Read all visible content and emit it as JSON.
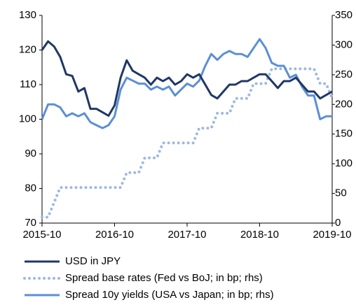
{
  "chart_data": {
    "type": "line",
    "x": [
      "2015-10",
      "2015-11",
      "2015-12",
      "2016-01",
      "2016-02",
      "2016-03",
      "2016-04",
      "2016-05",
      "2016-06",
      "2016-07",
      "2016-08",
      "2016-09",
      "2016-10",
      "2016-11",
      "2016-12",
      "2017-01",
      "2017-02",
      "2017-03",
      "2017-04",
      "2017-05",
      "2017-06",
      "2017-07",
      "2017-08",
      "2017-09",
      "2017-10",
      "2017-11",
      "2017-12",
      "2018-01",
      "2018-02",
      "2018-03",
      "2018-04",
      "2018-05",
      "2018-06",
      "2018-07",
      "2018-08",
      "2018-09",
      "2018-10",
      "2018-11",
      "2018-12",
      "2019-01",
      "2019-02",
      "2019-03",
      "2019-04",
      "2019-05",
      "2019-06",
      "2019-07",
      "2019-08",
      "2019-09",
      "2019-10"
    ],
    "series": [
      {
        "name": "USD in JPY",
        "color": "#1f3864",
        "style": "solid",
        "axis": "y",
        "values": [
          120,
          122.5,
          121,
          118,
          113,
          112.5,
          108,
          109,
          103,
          103,
          102,
          101,
          104,
          112,
          117,
          114,
          113,
          112,
          110,
          112,
          111,
          112,
          110,
          111,
          113,
          112,
          113,
          110,
          107,
          106,
          108,
          110,
          110,
          111,
          111,
          112,
          113,
          113,
          111,
          109,
          111,
          111,
          112,
          110,
          108,
          108,
          106,
          107,
          108
        ]
      },
      {
        "name": "Spread base rates (Fed vs BoJ; in bp; rhs)",
        "color": "#9db8e3",
        "style": "dotted",
        "axis": "y2",
        "values": [
          10,
          10,
          35,
          60,
          60,
          60,
          60,
          60,
          60,
          60,
          60,
          60,
          60,
          60,
          85,
          85,
          85,
          110,
          110,
          110,
          135,
          135,
          135,
          135,
          135,
          135,
          160,
          160,
          160,
          185,
          185,
          185,
          210,
          210,
          210,
          235,
          235,
          235,
          260,
          260,
          260,
          260,
          260,
          260,
          260,
          260,
          235,
          235,
          210
        ]
      },
      {
        "name": "Spread 10y yields (USA vs Japan; in bp; rhs)",
        "color": "#5b8fd6",
        "style": "solid",
        "axis": "y2",
        "values": [
          175,
          200,
          200,
          195,
          180,
          185,
          180,
          185,
          170,
          165,
          160,
          165,
          180,
          225,
          245,
          240,
          235,
          235,
          225,
          230,
          225,
          230,
          215,
          225,
          235,
          230,
          240,
          265,
          285,
          275,
          285,
          290,
          285,
          285,
          280,
          295,
          310,
          295,
          270,
          265,
          265,
          245,
          250,
          230,
          215,
          215,
          175,
          180,
          180
        ]
      }
    ],
    "ylim": [
      70,
      130
    ],
    "yticks": [
      70,
      80,
      90,
      100,
      110,
      120,
      130
    ],
    "y2lim": [
      0,
      350
    ],
    "y2ticks": [
      0,
      50,
      100,
      150,
      200,
      250,
      300,
      350
    ],
    "xticks": [
      "2015-10",
      "2016-10",
      "2017-10",
      "2018-10",
      "2019-10"
    ]
  }
}
